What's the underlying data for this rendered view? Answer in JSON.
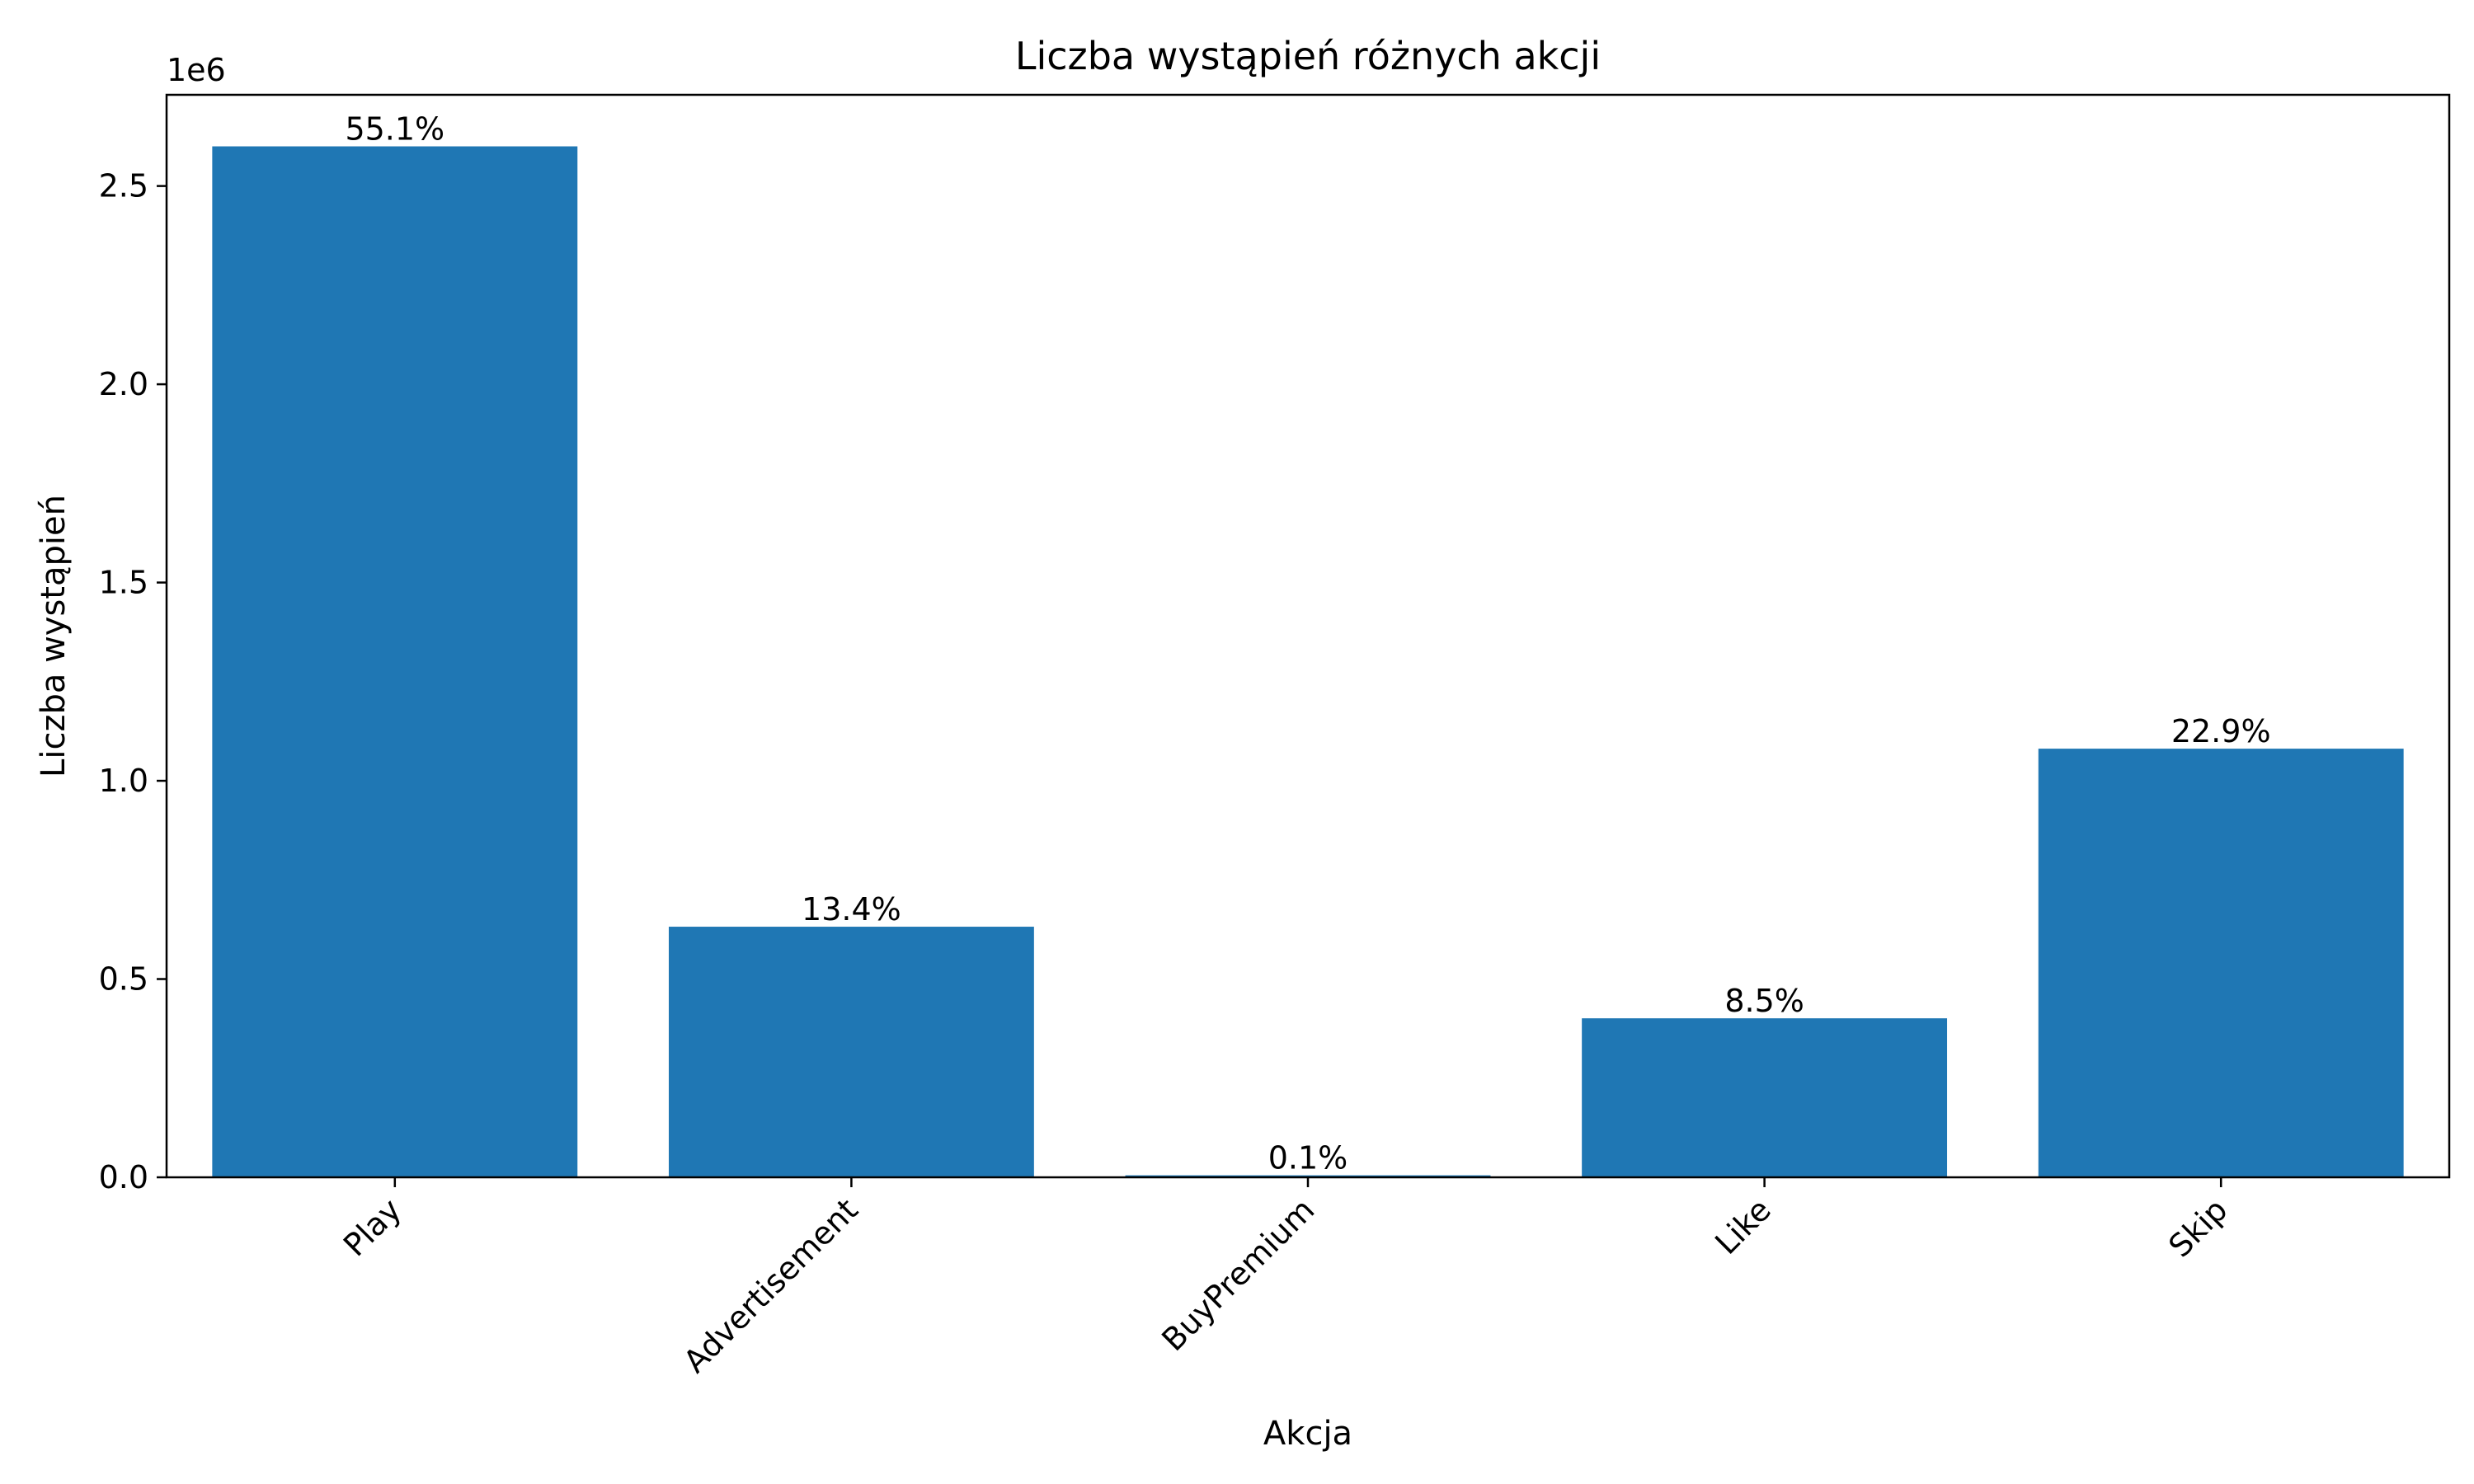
{
  "chart_data": {
    "type": "bar",
    "title": "Liczba wystąpień różnych akcji",
    "xlabel": "Akcja",
    "ylabel": "Liczba wystąpień",
    "y_scale_exponent_label": "1e6",
    "categories": [
      "Play",
      "Advertisement",
      "BuyPremium",
      "Like",
      "Skip"
    ],
    "values": [
      2600000,
      632000,
      5000,
      401000,
      1081000
    ],
    "value_labels": [
      "55.1%",
      "13.4%",
      "0.1%",
      "8.5%",
      "22.9%"
    ],
    "ylim": [
      0,
      2730000
    ],
    "yticks": [
      0,
      500000,
      1000000,
      1500000,
      2000000,
      2500000
    ],
    "ytick_labels": [
      "0.0",
      "0.5",
      "1.0",
      "1.5",
      "2.0",
      "2.5"
    ],
    "x_tick_rotation_deg": 45,
    "grid": false,
    "legend": "none",
    "colors": {
      "bar": "#1f77b4",
      "axes": "#000000",
      "background": "#ffffff"
    }
  }
}
